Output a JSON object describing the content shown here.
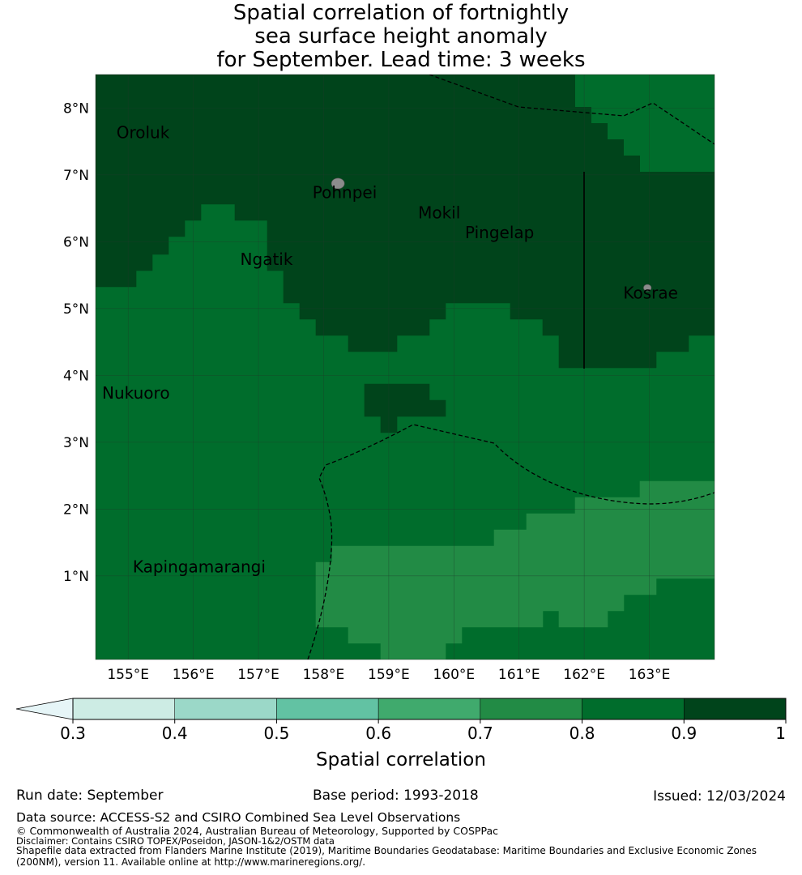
{
  "title": {
    "line1": "Spatial correlation of fortnightly",
    "line2": "sea surface height anomaly",
    "line3": "for September. Lead time: 3 weeks"
  },
  "map": {
    "lon_range": [
      154.5,
      164.0
    ],
    "lat_range": [
      -0.25,
      8.5
    ],
    "grid_color": "#1f3b2a",
    "island_color": "#8c8c8c",
    "lon_ticks": [
      {
        "lon": 155,
        "label": "155°E"
      },
      {
        "lon": 156,
        "label": "156°E"
      },
      {
        "lon": 157,
        "label": "157°E"
      },
      {
        "lon": 158,
        "label": "158°E"
      },
      {
        "lon": 159,
        "label": "159°E"
      },
      {
        "lon": 160,
        "label": "160°E"
      },
      {
        "lon": 161,
        "label": "161°E"
      },
      {
        "lon": 162,
        "label": "162°E"
      },
      {
        "lon": 163,
        "label": "163°E"
      }
    ],
    "lat_ticks": [
      {
        "lat": 8,
        "label": "8°N"
      },
      {
        "lat": 7,
        "label": "7°N"
      },
      {
        "lat": 6,
        "label": "6°N"
      },
      {
        "lat": 5,
        "label": "5°N"
      },
      {
        "lat": 4,
        "label": "4°N"
      },
      {
        "lat": 3,
        "label": "3°N"
      },
      {
        "lat": 2,
        "label": "2°N"
      },
      {
        "lat": 1,
        "label": "1°N"
      }
    ],
    "places": [
      {
        "name": "Oroluk",
        "lon": 154.82,
        "lat": 7.55
      },
      {
        "name": "Pohnpei",
        "lon": 157.83,
        "lat": 6.65
      },
      {
        "name": "Mokil",
        "lon": 159.45,
        "lat": 6.35
      },
      {
        "name": "Pingelap",
        "lon": 160.17,
        "lat": 6.05
      },
      {
        "name": "Ngatik",
        "lon": 156.72,
        "lat": 5.65
      },
      {
        "name": "Kosrae",
        "lon": 162.6,
        "lat": 5.15
      },
      {
        "name": "Nukuoro",
        "lon": 154.6,
        "lat": 3.65
      },
      {
        "name": "Kapingamarangi",
        "lon": 155.07,
        "lat": 1.05
      }
    ],
    "islands": [
      {
        "name": "Pohnpei",
        "lon": 158.22,
        "lat": 6.87,
        "rx": 0.1,
        "ry": 0.08
      },
      {
        "name": "Kosrae",
        "lon": 162.97,
        "lat": 5.31,
        "rx": 0.06,
        "ry": 0.05
      }
    ]
  },
  "colorbar": {
    "label": "Spatial correlation",
    "ticks": [
      "0.3",
      "0.4",
      "0.5",
      "0.6",
      "0.7",
      "0.8",
      "0.9",
      "1"
    ],
    "extend_color": "#e6f5f7",
    "colors": [
      "#cdece4",
      "#9bd8c8",
      "#62c2a3",
      "#40aa6d",
      "#228b45",
      "#006d2c",
      "#00441b"
    ]
  },
  "footer": {
    "run_date": "Run date: September",
    "base_period": "Base period: 1993-2018",
    "issued": "Issued: 12/03/2024",
    "data_source": "Data source: ACCESS-S2 and CSIRO Combined Sea Level Observations",
    "copyright": "© Commonwealth of Australia 2024, Australian Bureau of Meteorology, Supported by COSPPac",
    "disclaimer": "Disclaimer: Contains CSIRO TOPEX/Poseidon, JASON-1&2/OSTM data",
    "shapefile_line1": "Shapefile data extracted from Flanders Marine Institute (2019), Maritime Boundaries Geodatabase: Maritime Boundaries and Exclusive Economic Zones",
    "shapefile_line2": "(200NM), version 11. Available online at http://www.marineregions.org/."
  }
}
